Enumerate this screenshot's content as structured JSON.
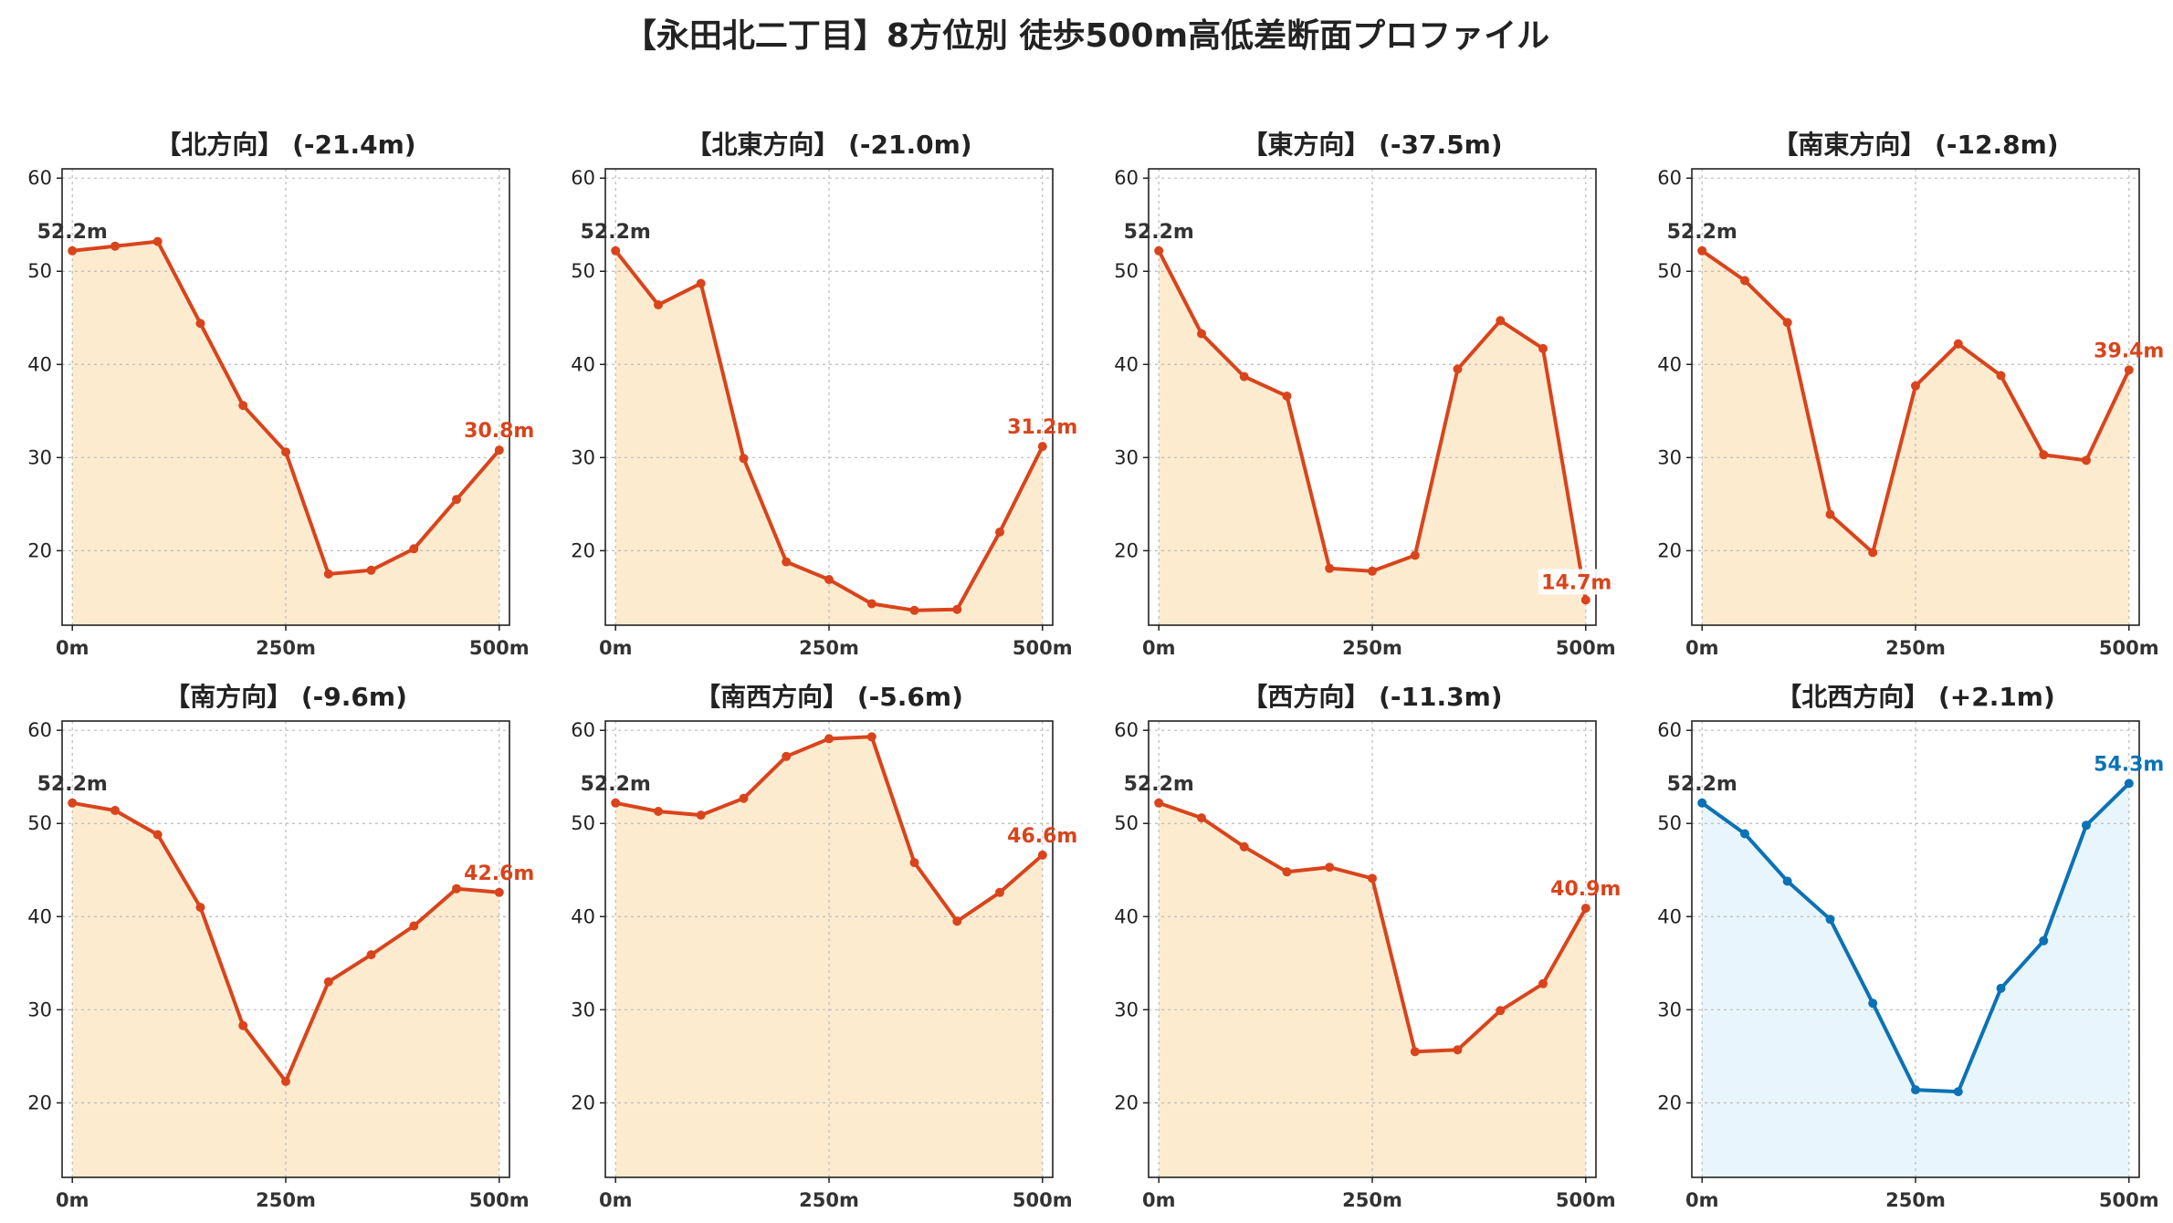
{
  "title": "【永田北二丁目】8方位別 徒歩500m高低差断面プロファイル",
  "colors": {
    "descent_line": "#d9441c",
    "descent_fill": "#fdebd0",
    "ascent_line": "#0b72b5",
    "ascent_fill": "#e8f5fc"
  },
  "chart_data": [
    {
      "type": "line",
      "title": "【北方向】 (-21.4m)",
      "x": [
        0,
        50,
        100,
        150,
        200,
        250,
        300,
        350,
        400,
        450,
        500
      ],
      "y": [
        52.2,
        52.7,
        53.2,
        44.4,
        35.6,
        30.6,
        17.5,
        17.9,
        20.2,
        25.5,
        30.8
      ],
      "start_label": "52.2m",
      "end_label": "30.8m",
      "trend": "descent",
      "xticks": [
        "0m",
        "250m",
        "500m"
      ],
      "yticks": [
        20,
        30,
        40,
        50,
        60
      ],
      "ylim": [
        12,
        61
      ],
      "xlim": [
        -12,
        512
      ],
      "grid": true
    },
    {
      "type": "line",
      "title": "【北東方向】 (-21.0m)",
      "x": [
        0,
        50,
        100,
        150,
        200,
        250,
        300,
        350,
        400,
        450,
        500
      ],
      "y": [
        52.2,
        46.4,
        48.7,
        29.9,
        18.8,
        16.9,
        14.3,
        13.6,
        13.7,
        22.0,
        31.2
      ],
      "start_label": "52.2m",
      "end_label": "31.2m",
      "trend": "descent",
      "xticks": [
        "0m",
        "250m",
        "500m"
      ],
      "yticks": [
        20,
        30,
        40,
        50,
        60
      ],
      "ylim": [
        12,
        61
      ],
      "xlim": [
        -12,
        512
      ],
      "grid": true
    },
    {
      "type": "line",
      "title": "【東方向】 (-37.5m)",
      "x": [
        0,
        50,
        100,
        150,
        200,
        250,
        300,
        350,
        400,
        450,
        500
      ],
      "y": [
        52.2,
        43.3,
        38.7,
        36.6,
        18.1,
        17.8,
        19.5,
        39.5,
        44.7,
        41.7,
        14.7
      ],
      "start_label": "52.2m",
      "end_label": "14.7m",
      "trend": "descent",
      "xticks": [
        "0m",
        "250m",
        "500m"
      ],
      "yticks": [
        20,
        30,
        40,
        50,
        60
      ],
      "ylim": [
        12,
        61
      ],
      "xlim": [
        -12,
        512
      ],
      "grid": true
    },
    {
      "type": "line",
      "title": "【南東方向】 (-12.8m)",
      "x": [
        0,
        50,
        100,
        150,
        200,
        250,
        300,
        350,
        400,
        450,
        500
      ],
      "y": [
        52.2,
        49.0,
        44.5,
        23.9,
        19.8,
        37.7,
        42.2,
        38.8,
        30.3,
        29.7,
        39.4
      ],
      "start_label": "52.2m",
      "end_label": "39.4m",
      "trend": "descent",
      "xticks": [
        "0m",
        "250m",
        "500m"
      ],
      "yticks": [
        20,
        30,
        40,
        50,
        60
      ],
      "ylim": [
        12,
        61
      ],
      "xlim": [
        -12,
        512
      ],
      "grid": true
    },
    {
      "type": "line",
      "title": "【南方向】 (-9.6m)",
      "x": [
        0,
        50,
        100,
        150,
        200,
        250,
        300,
        350,
        400,
        450,
        500
      ],
      "y": [
        52.2,
        51.4,
        48.8,
        41.0,
        28.3,
        22.3,
        33.0,
        35.9,
        39.0,
        43.0,
        42.6
      ],
      "start_label": "52.2m",
      "end_label": "42.6m",
      "trend": "descent",
      "xticks": [
        "0m",
        "250m",
        "500m"
      ],
      "yticks": [
        20,
        30,
        40,
        50,
        60
      ],
      "ylim": [
        12,
        61
      ],
      "xlim": [
        -12,
        512
      ],
      "grid": true
    },
    {
      "type": "line",
      "title": "【南西方向】 (-5.6m)",
      "x": [
        0,
        50,
        100,
        150,
        200,
        250,
        300,
        350,
        400,
        450,
        500
      ],
      "y": [
        52.2,
        51.3,
        50.9,
        52.7,
        57.2,
        59.1,
        59.3,
        45.8,
        39.5,
        42.6,
        46.6
      ],
      "start_label": "52.2m",
      "end_label": "46.6m",
      "trend": "descent",
      "xticks": [
        "0m",
        "250m",
        "500m"
      ],
      "yticks": [
        20,
        30,
        40,
        50,
        60
      ],
      "ylim": [
        12,
        61
      ],
      "xlim": [
        -12,
        512
      ],
      "grid": true
    },
    {
      "type": "line",
      "title": "【西方向】 (-11.3m)",
      "x": [
        0,
        50,
        100,
        150,
        200,
        250,
        300,
        350,
        400,
        450,
        500
      ],
      "y": [
        52.2,
        50.6,
        47.5,
        44.8,
        45.3,
        44.1,
        25.5,
        25.7,
        29.9,
        32.8,
        40.9
      ],
      "start_label": "52.2m",
      "end_label": "40.9m",
      "trend": "descent",
      "xticks": [
        "0m",
        "250m",
        "500m"
      ],
      "yticks": [
        20,
        30,
        40,
        50,
        60
      ],
      "ylim": [
        12,
        61
      ],
      "xlim": [
        -12,
        512
      ],
      "grid": true
    },
    {
      "type": "line",
      "title": "【北西方向】 (+2.1m)",
      "x": [
        0,
        50,
        100,
        150,
        200,
        250,
        300,
        350,
        400,
        450,
        500
      ],
      "y": [
        52.2,
        48.9,
        43.8,
        39.7,
        30.7,
        21.4,
        21.2,
        32.3,
        37.4,
        49.8,
        54.3
      ],
      "start_label": "52.2m",
      "end_label": "54.3m",
      "trend": "ascent",
      "xticks": [
        "0m",
        "250m",
        "500m"
      ],
      "yticks": [
        20,
        30,
        40,
        50,
        60
      ],
      "ylim": [
        12,
        61
      ],
      "xlim": [
        -12,
        512
      ],
      "grid": true
    }
  ]
}
